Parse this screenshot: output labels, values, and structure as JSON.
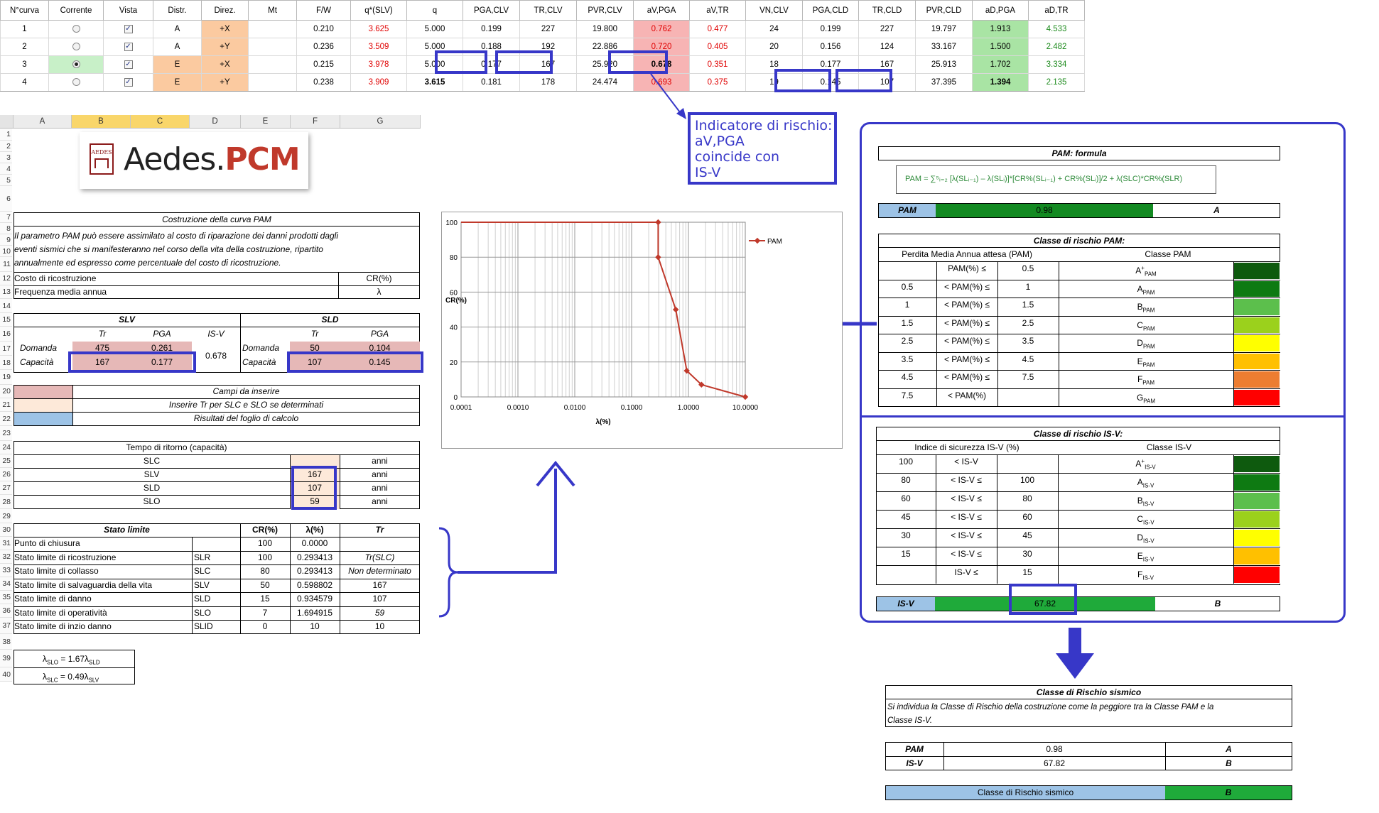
{
  "top_table": {
    "headers": [
      "N°curva",
      "Corrente",
      "Vista",
      "Distr.",
      "Direz.",
      "Mt",
      "F/W",
      "q*(SLV)",
      "q",
      "PGA,CLV",
      "TR,CLV",
      "PVR,CLV",
      "aV,PGA",
      "aV,TR",
      "VN,CLV",
      "PGA,CLD",
      "TR,CLD",
      "PVR,CLD",
      "aD,PGA",
      "aD,TR"
    ],
    "rows": [
      {
        "n": "1",
        "distr": "A",
        "direz": "+X",
        "mt": "",
        "fw": "0.210",
        "qslv": "3.625",
        "q": "5.000",
        "pga_clv": "0.199",
        "tr_clv": "227",
        "pvr_clv": "19.800",
        "av_pga": "0.762",
        "av_tr": "0.477",
        "vn": "24",
        "pga_cld": "0.199",
        "tr_cld": "227",
        "pvr_cld": "19.797",
        "ad_pga": "1.913",
        "ad_tr": "4.533"
      },
      {
        "n": "2",
        "distr": "A",
        "direz": "+Y",
        "mt": "",
        "fw": "0.236",
        "qslv": "3.509",
        "q": "5.000",
        "pga_clv": "0.188",
        "tr_clv": "192",
        "pvr_clv": "22.886",
        "av_pga": "0.720",
        "av_tr": "0.405",
        "vn": "20",
        "pga_cld": "0.156",
        "tr_cld": "124",
        "pvr_cld": "33.167",
        "ad_pga": "1.500",
        "ad_tr": "2.482"
      },
      {
        "n": "3",
        "distr": "E",
        "direz": "+X",
        "mt": "",
        "fw": "0.215",
        "qslv": "3.978",
        "q": "5.000",
        "pga_clv": "0.177",
        "tr_clv": "167",
        "pvr_clv": "25.920",
        "av_pga": "0.678",
        "av_tr": "0.351",
        "vn": "18",
        "pga_cld": "0.177",
        "tr_cld": "167",
        "pvr_cld": "25.913",
        "ad_pga": "1.702",
        "ad_tr": "3.334"
      },
      {
        "n": "4",
        "distr": "E",
        "direz": "+Y",
        "mt": "",
        "fw": "0.238",
        "qslv": "3.909",
        "q": "3.615",
        "pga_clv": "0.181",
        "tr_clv": "178",
        "pvr_clv": "24.474",
        "av_pga": "0.693",
        "av_tr": "0.375",
        "vn": "19",
        "pga_cld": "0.145",
        "tr_cld": "107",
        "pvr_cld": "37.395",
        "ad_pga": "1.394",
        "ad_tr": "2.135"
      }
    ],
    "checkmark": "✓"
  },
  "annotation": {
    "line1": "Indicatore di rischio:",
    "line2": "aV,PGA",
    "line3": "coincide con",
    "line4": "IS-V"
  },
  "logo": {
    "badge": "AEDES",
    "prefix": "Aedes.",
    "suffix": "PCM"
  },
  "sheet": {
    "cols": [
      "A",
      "B",
      "C",
      "D",
      "E",
      "F",
      "G"
    ],
    "rows": [
      "1",
      "2",
      "3",
      "4",
      "5",
      "6",
      "7",
      "8",
      "9",
      "10",
      "11",
      "12",
      "13",
      "14",
      "15",
      "16",
      "17",
      "18",
      "19",
      "20",
      "21",
      "22",
      "23",
      "24",
      "25",
      "26",
      "27",
      "28",
      "29",
      "30",
      "31",
      "32",
      "33",
      "34",
      "35",
      "36",
      "37",
      "38",
      "39",
      "40"
    ],
    "title_pam": "Costruzione della curva  PAM",
    "desc1": "Il parametro PAM può essere assimilato al costo di riparazione dei danni prodotti dagli",
    "desc2": "eventi sismici che si manifesteranno nel corso della vita della costruzione, ripartito",
    "desc3": "annualmente ed espresso come percentuale del costo di ricostruzione.",
    "costo_label": "Costo di ricostruzione",
    "costo_sym": "CR(%)",
    "freq_label": "Frequenza media annua",
    "freq_sym": "λ",
    "slv": "SLV",
    "sld": "SLD",
    "tr": "Tr",
    "pga": "PGA",
    "isv": "IS-V",
    "domanda": "Domanda",
    "capacita": "Capacità",
    "slv_dom_tr": "475",
    "slv_dom_pga": "0.261",
    "slv_cap_tr": "167",
    "slv_cap_pga": "0.177",
    "isv_val": "0.678",
    "sld_dom_tr": "50",
    "sld_dom_pga": "0.104",
    "sld_cap_tr": "107",
    "sld_cap_pga": "0.145",
    "legend1": "Campi da inserire",
    "legend2": "Inserire Tr per SLC e SLO se determinati",
    "legend3": "Risultati del foglio di calcolo",
    "tempo_title": "Tempo di ritorno (capacità)",
    "tempo": [
      {
        "label": "SLC",
        "val": "",
        "unit": "anni"
      },
      {
        "label": "SLV",
        "val": "167",
        "unit": "anni"
      },
      {
        "label": "SLD",
        "val": "107",
        "unit": "anni"
      },
      {
        "label": "SLO",
        "val": "59",
        "unit": "anni"
      }
    ],
    "stato_hdr": {
      "title": "Stato limite",
      "cr": "CR(%)",
      "lam": "λ(%)",
      "tr": "Tr"
    },
    "stato": [
      {
        "name": "Punto di chiusura",
        "code": "",
        "cr": "100",
        "lam": "0.0000",
        "tr": ""
      },
      {
        "name": "Stato limite di ricostruzione",
        "code": "SLR",
        "cr": "100",
        "lam": "0.293413",
        "tr": "Tr(SLC)"
      },
      {
        "name": "Stato limite di collasso",
        "code": "SLC",
        "cr": "80",
        "lam": "0.293413",
        "tr": "Non determinato"
      },
      {
        "name": "Stato limite di salvaguardia della vita",
        "code": "SLV",
        "cr": "50",
        "lam": "0.598802",
        "tr": "167"
      },
      {
        "name": "Stato limite di danno",
        "code": "SLD",
        "cr": "15",
        "lam": "0.934579",
        "tr": "107"
      },
      {
        "name": "Stato limite di operatività",
        "code": "SLO",
        "cr": "7",
        "lam": "1.694915",
        "tr": "59"
      },
      {
        "name": "Stato limite di inzio danno",
        "code": "SLID",
        "cr": "0",
        "lam": "10",
        "tr": "10"
      }
    ],
    "f1": "λ",
    "f1_sub1": "SLO",
    "f1_mid": " = 1.67λ",
    "f1_sub2": "SLD",
    "f2_sub1": "SLC",
    "f2_mid": " = 0.49λ",
    "f2_sub2": "SLV"
  },
  "chart_data": {
    "type": "line",
    "series": [
      {
        "name": "PAM",
        "x": [
          0.293413,
          0.293413,
          0.598802,
          0.934579,
          1.694915,
          10
        ],
        "y": [
          100,
          80,
          50,
          15,
          7,
          0
        ]
      }
    ],
    "xlabel": "λ(%)",
    "ylabel": "CR(%)",
    "xscale": "log",
    "xlim": [
      0.0001,
      10
    ],
    "xticks": [
      "0.0001",
      "0.0010",
      "0.0100",
      "0.1000",
      "1.0000",
      "10.0000"
    ],
    "ylim": [
      0,
      100
    ],
    "yticks": [
      "0",
      "20",
      "40",
      "60",
      "80",
      "100"
    ],
    "grid": true,
    "legend": "right",
    "color": "#c0392b"
  },
  "pam_panel": {
    "formula_title": "PAM: formula",
    "formula": "PAM = ∑⁵ᵢ₌₂ [λ(SLᵢ₋₁) – λ(SLᵢ)]*[CR%(SLᵢ₋₁) + CR%(SLᵢ)]/2 + λ(SLC)*CR%(SLR)",
    "pam_label": "PAM",
    "pam_value": "0.98",
    "pam_class": "A",
    "class_title": "Classe di rischio PAM:",
    "col1": "Perdita Media Annua attesa (PAM)",
    "col2": "Classe PAM",
    "rows": [
      {
        "lo": "",
        "op": "PAM(%) ≤",
        "hi": "0.5",
        "cls": "A",
        "sup": "+",
        "sub": "PAM",
        "color": "#0e5a0e"
      },
      {
        "lo": "0.5",
        "op": "< PAM(%) ≤",
        "hi": "1",
        "cls": "A",
        "sup": "",
        "sub": "PAM",
        "color": "#0e7a12"
      },
      {
        "lo": "1",
        "op": "< PAM(%) ≤",
        "hi": "1.5",
        "cls": "B",
        "sup": "",
        "sub": "PAM",
        "color": "#5cbf4c"
      },
      {
        "lo": "1.5",
        "op": "< PAM(%) ≤",
        "hi": "2.5",
        "cls": "C",
        "sup": "",
        "sub": "PAM",
        "color": "#9bd11c"
      },
      {
        "lo": "2.5",
        "op": "< PAM(%) ≤",
        "hi": "3.5",
        "cls": "D",
        "sup": "",
        "sub": "PAM",
        "color": "#ffff00"
      },
      {
        "lo": "3.5",
        "op": "< PAM(%) ≤",
        "hi": "4.5",
        "cls": "E",
        "sup": "",
        "sub": "PAM",
        "color": "#ffc000"
      },
      {
        "lo": "4.5",
        "op": "< PAM(%) ≤",
        "hi": "7.5",
        "cls": "F",
        "sup": "",
        "sub": "PAM",
        "color": "#ed7d31"
      },
      {
        "lo": "7.5",
        "op": "< PAM(%)",
        "hi": "",
        "cls": "G",
        "sup": "",
        "sub": "PAM",
        "color": "#ff0000"
      }
    ]
  },
  "isv_panel": {
    "class_title": "Classe di rischio IS-V:",
    "col1": "Indice di sicurezza IS-V (%)",
    "col2": "Classe IS-V",
    "rows": [
      {
        "lo": "100",
        "op": "< IS-V",
        "hi": "",
        "cls": "A",
        "sup": "+",
        "sub": "IS-V",
        "color": "#0e5a0e"
      },
      {
        "lo": "80",
        "op": "< IS-V ≤",
        "hi": "100",
        "cls": "A",
        "sup": "",
        "sub": "IS-V",
        "color": "#0e7a12"
      },
      {
        "lo": "60",
        "op": "< IS-V ≤",
        "hi": "80",
        "cls": "B",
        "sup": "",
        "sub": "IS-V",
        "color": "#5cbf4c"
      },
      {
        "lo": "45",
        "op": "< IS-V ≤",
        "hi": "60",
        "cls": "C",
        "sup": "",
        "sub": "IS-V",
        "color": "#9bd11c"
      },
      {
        "lo": "30",
        "op": "< IS-V ≤",
        "hi": "45",
        "cls": "D",
        "sup": "",
        "sub": "IS-V",
        "color": "#ffff00"
      },
      {
        "lo": "15",
        "op": "< IS-V ≤",
        "hi": "30",
        "cls": "E",
        "sup": "",
        "sub": "IS-V",
        "color": "#ffc000"
      },
      {
        "lo": "",
        "op": "IS-V ≤",
        "hi": "15",
        "cls": "F",
        "sup": "",
        "sub": "IS-V",
        "color": "#ff0000"
      }
    ],
    "isv_label": "IS-V",
    "isv_value": "67.82",
    "isv_class": "B"
  },
  "final": {
    "title": "Classe di Rischio sismico",
    "desc1": "Si individua la Classe di Rischio  della costruzione come la peggiore tra la Classe PAM  e la",
    "desc2": "Classe IS-V.",
    "pam_label": "PAM",
    "pam_value": "0.98",
    "pam_class": "A",
    "isv_label": "IS-V",
    "isv_value": "67.82",
    "isv_class": "B",
    "result_label": "Classe di Rischio sismico",
    "result_class": "B"
  },
  "colors": {
    "accent_blue": "#3737c8",
    "green_bar": "#1faa3a",
    "dark_green": "#138a22",
    "header_blue": "#9dc3e6",
    "input_pink": "#e6b8b7",
    "input_peach": "#fde9d9"
  }
}
